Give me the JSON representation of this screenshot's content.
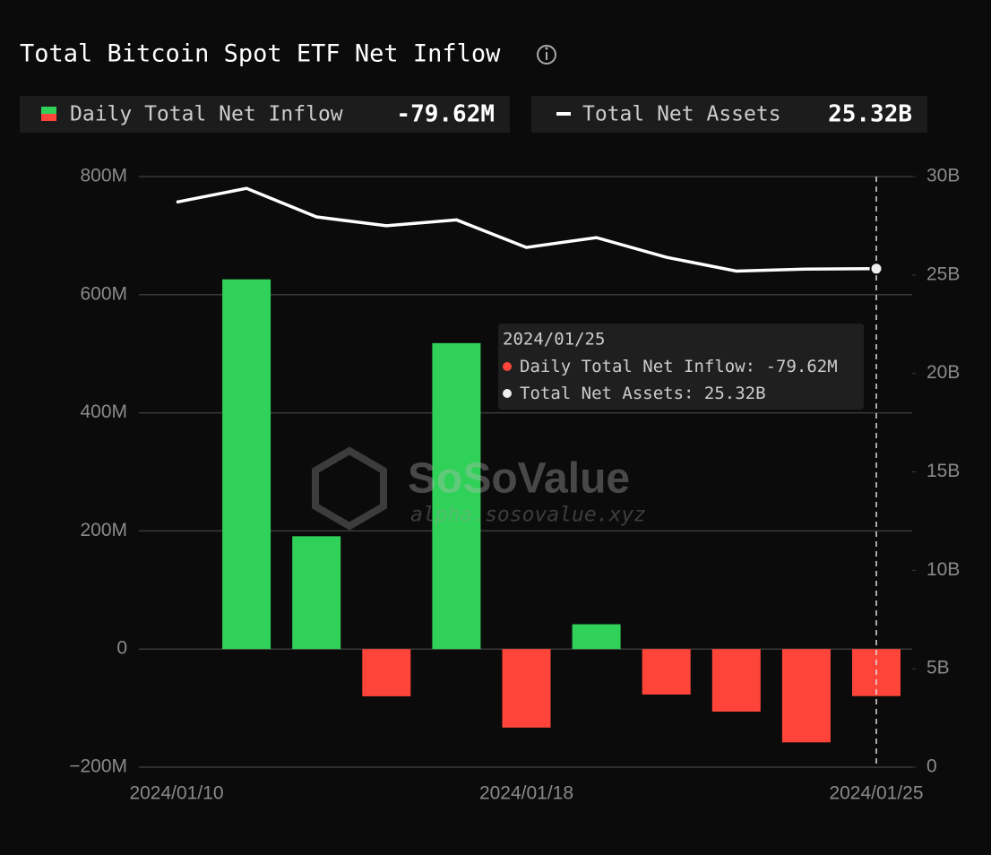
{
  "chart_data": {
    "type": "bar",
    "title": "Total Bitcoin Spot ETF Net Inflow",
    "categories": [
      "2024/01/10",
      null,
      null,
      null,
      null,
      "2024/01/18",
      null,
      null,
      null,
      null,
      "2024/01/25"
    ],
    "series": [
      {
        "name": "Daily Total Net Inflow",
        "type": "bar",
        "positive_color": "#30d158",
        "negative_color": "#ff453a",
        "values": [
          0,
          626,
          191,
          -80,
          518,
          -133,
          42,
          -77,
          -106,
          -158,
          -79.62
        ],
        "value_labels": [
          null,
          null,
          null,
          null,
          null,
          null,
          null,
          null,
          null,
          null,
          "-79.62M"
        ]
      },
      {
        "name": "Total Net Assets",
        "type": "line",
        "axis": "y2",
        "color": "#ffffff",
        "values": [
          28.7,
          29.4,
          27.95,
          27.5,
          27.8,
          26.4,
          26.9,
          25.9,
          25.2,
          25.3,
          25.32
        ],
        "value_labels": [
          null,
          null,
          null,
          null,
          null,
          null,
          null,
          null,
          null,
          null,
          "25.32B"
        ]
      }
    ],
    "ylim": [
      -200,
      800
    ],
    "yticks": [
      {
        "value": -200,
        "label": "−200M"
      },
      0,
      {
        "value": 200,
        "label": "200M"
      },
      {
        "value": 400,
        "label": "400M"
      },
      {
        "value": 600,
        "label": "600M"
      },
      {
        "value": 800,
        "label": "800M"
      }
    ],
    "y2lim": [
      0,
      30
    ],
    "y2ticks": [
      0,
      {
        "value": 5,
        "label": "5B"
      },
      {
        "value": 10,
        "label": "10B"
      },
      {
        "value": 15,
        "label": "15B"
      },
      {
        "value": 20,
        "label": "20B"
      },
      {
        "value": 25,
        "label": "25B"
      },
      {
        "value": 30,
        "label": "30B"
      }
    ],
    "grid": true,
    "highlight_index": 10,
    "watermark": {
      "brand": "SoSoValue",
      "url": "alpha.sosovalue.xyz"
    }
  }
}
